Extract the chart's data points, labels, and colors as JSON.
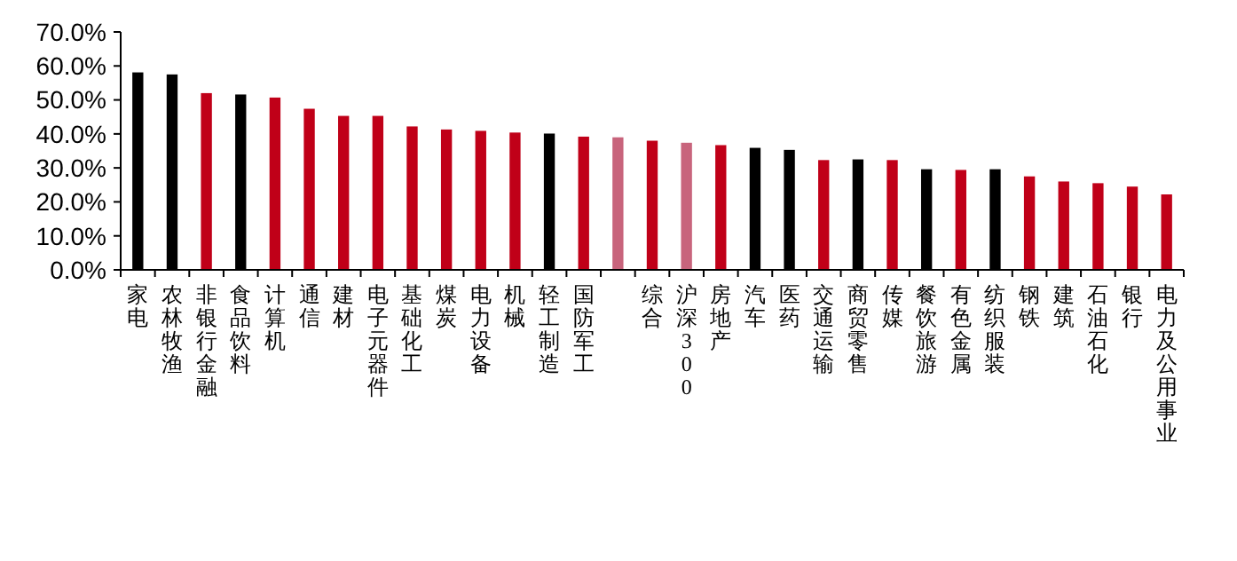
{
  "chart_data": {
    "type": "bar",
    "categories": [
      "家电",
      "农林牧渔",
      "非银行金融",
      "食品饮料",
      "计算机",
      "通信",
      "建材",
      "电子元器件",
      "基础化工",
      "煤炭",
      "电力设备",
      "机械",
      "轻工制造",
      "国防军工",
      null,
      "综合",
      "沪深300",
      "房地产",
      "汽车",
      "医药",
      "交通运输",
      "商贸零售",
      "传媒",
      "餐饮旅游",
      "有色金属",
      "纺织服装",
      "钢铁",
      "建筑",
      "石油石化",
      "银行",
      "电力及公用事业"
    ],
    "values": [
      58.1,
      57.5,
      52.0,
      51.6,
      50.7,
      47.4,
      45.3,
      45.3,
      42.2,
      41.3,
      40.9,
      40.4,
      40.1,
      39.2,
      39.0,
      38.0,
      37.4,
      36.7,
      35.9,
      35.3,
      32.3,
      32.5,
      32.3,
      29.6,
      29.4,
      29.6,
      27.5,
      26.0,
      25.5,
      24.5,
      22.2
    ],
    "colors": [
      "#000000",
      "#000000",
      "#c00018",
      "#000000",
      "#c00018",
      "#c00018",
      "#c00018",
      "#c00018",
      "#c00018",
      "#c00018",
      "#c00018",
      "#c00018",
      "#000000",
      "#c00018",
      "#c8647c",
      "#c00018",
      "#c8647c",
      "#c00018",
      "#000000",
      "#000000",
      "#c00018",
      "#000000",
      "#c00018",
      "#000000",
      "#c00018",
      "#000000",
      "#c00018",
      "#c00018",
      "#c00018",
      "#c00018",
      "#c00018"
    ],
    "ylim": [
      0,
      70
    ],
    "yticks": [
      {
        "value": 0,
        "label": "0.0%"
      },
      {
        "value": 10,
        "label": "10.0%"
      },
      {
        "value": 20,
        "label": "20.0%"
      },
      {
        "value": 30,
        "label": "30.0%"
      },
      {
        "value": 40,
        "label": "40.0%"
      },
      {
        "value": 50,
        "label": "50.0%"
      },
      {
        "value": 60,
        "label": "60.0%"
      },
      {
        "value": 70,
        "label": "70.0%"
      }
    ],
    "grid": false
  }
}
